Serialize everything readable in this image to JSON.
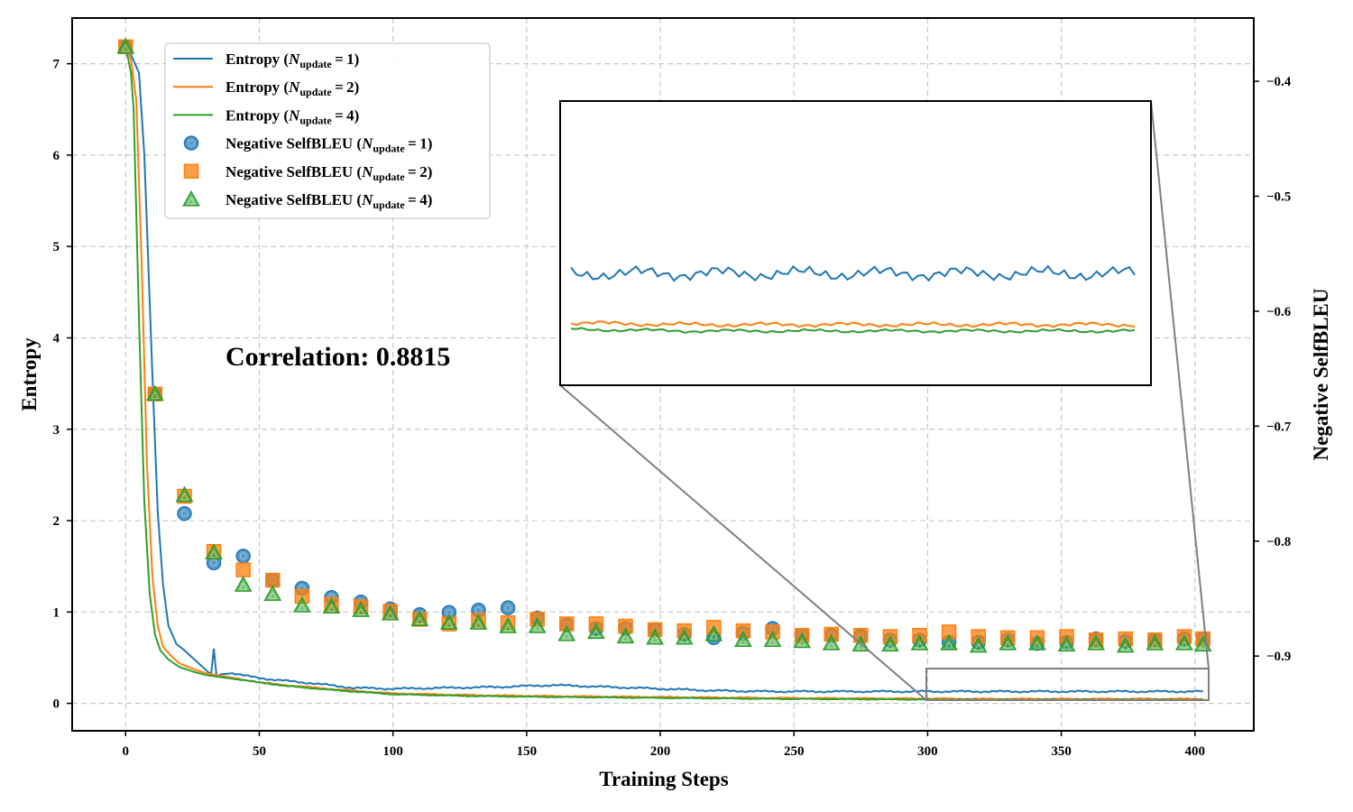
{
  "chart_data": {
    "type": "line",
    "xlabel": "Training Steps",
    "ylabel_left": "Entropy",
    "ylabel_right": "Negative SelfBLEU",
    "xlim": [
      -20,
      422
    ],
    "ylim_left": [
      -0.3,
      7.5
    ],
    "ylim_right": [
      -0.965,
      -0.345
    ],
    "x_ticks": [
      0,
      50,
      100,
      150,
      200,
      250,
      300,
      350,
      400
    ],
    "y_ticks_left": [
      0,
      1,
      2,
      3,
      4,
      5,
      6,
      7
    ],
    "y_ticks_right": [
      -0.4,
      -0.5,
      -0.6,
      -0.7,
      -0.8,
      -0.9
    ],
    "y_tick_labels_right": [
      "−0.4",
      "−0.5",
      "−0.6",
      "−0.7",
      "−0.8",
      "−0.9"
    ],
    "grid": true,
    "legend_position": "top-left",
    "annotation": "Correlation: 0.8815",
    "colors": {
      "n1": "#1f77b4",
      "n2": "#ff7f0e",
      "n4": "#2ca02c",
      "zoom": "#808080"
    },
    "entropy_series": [
      {
        "key": "n1",
        "legend_prefix": "Entropy (",
        "legend_suffix": ")",
        "points": [
          [
            0,
            7.15
          ],
          [
            2,
            7.1
          ],
          [
            5,
            6.9
          ],
          [
            7,
            6.0
          ],
          [
            10,
            3.6
          ],
          [
            12,
            2.1
          ],
          [
            14,
            1.3
          ],
          [
            16,
            0.85
          ],
          [
            19,
            0.65
          ],
          [
            22,
            0.58
          ],
          [
            25,
            0.5
          ],
          [
            28,
            0.42
          ],
          [
            31,
            0.34
          ],
          [
            32,
            0.32
          ],
          [
            33,
            0.6
          ],
          [
            34,
            0.3
          ],
          [
            36,
            0.32
          ],
          [
            40,
            0.33
          ],
          [
            45,
            0.3
          ],
          [
            55,
            0.26
          ],
          [
            70,
            0.22
          ],
          [
            85,
            0.17
          ],
          [
            100,
            0.16
          ],
          [
            120,
            0.17
          ],
          [
            140,
            0.18
          ],
          [
            160,
            0.2
          ],
          [
            180,
            0.18
          ],
          [
            200,
            0.16
          ],
          [
            220,
            0.14
          ],
          [
            240,
            0.13
          ],
          [
            260,
            0.13
          ],
          [
            280,
            0.13
          ],
          [
            300,
            0.13
          ],
          [
            320,
            0.13
          ],
          [
            340,
            0.13
          ],
          [
            360,
            0.13
          ],
          [
            380,
            0.13
          ],
          [
            400,
            0.13
          ]
        ]
      },
      {
        "key": "n2",
        "legend_prefix": "Entropy (",
        "legend_suffix": ")",
        "points": [
          [
            0,
            7.15
          ],
          [
            2,
            7.05
          ],
          [
            4,
            6.6
          ],
          [
            6,
            4.8
          ],
          [
            8,
            2.6
          ],
          [
            10,
            1.4
          ],
          [
            12,
            0.85
          ],
          [
            14,
            0.62
          ],
          [
            17,
            0.52
          ],
          [
            20,
            0.44
          ],
          [
            25,
            0.38
          ],
          [
            30,
            0.33
          ],
          [
            40,
            0.28
          ],
          [
            50,
            0.23
          ],
          [
            60,
            0.2
          ],
          [
            80,
            0.15
          ],
          [
            100,
            0.11
          ],
          [
            130,
            0.09
          ],
          [
            160,
            0.08
          ],
          [
            200,
            0.07
          ],
          [
            240,
            0.06
          ],
          [
            280,
            0.055
          ],
          [
            320,
            0.05
          ],
          [
            360,
            0.05
          ],
          [
            400,
            0.05
          ]
        ]
      },
      {
        "key": "n4",
        "legend_prefix": "Entropy (",
        "legend_suffix": ")",
        "points": [
          [
            0,
            7.15
          ],
          [
            1,
            7.05
          ],
          [
            2,
            6.9
          ],
          [
            3,
            6.5
          ],
          [
            5,
            4.2
          ],
          [
            7,
            2.2
          ],
          [
            9,
            1.2
          ],
          [
            11,
            0.75
          ],
          [
            13,
            0.58
          ],
          [
            16,
            0.48
          ],
          [
            20,
            0.4
          ],
          [
            25,
            0.35
          ],
          [
            30,
            0.31
          ],
          [
            40,
            0.27
          ],
          [
            50,
            0.23
          ],
          [
            60,
            0.19
          ],
          [
            80,
            0.14
          ],
          [
            100,
            0.1
          ],
          [
            130,
            0.08
          ],
          [
            160,
            0.07
          ],
          [
            200,
            0.06
          ],
          [
            240,
            0.05
          ],
          [
            280,
            0.045
          ],
          [
            320,
            0.04
          ],
          [
            360,
            0.04
          ],
          [
            400,
            0.04
          ]
        ]
      }
    ],
    "selfbleu_series": [
      {
        "key": "n1",
        "marker": "circle",
        "legend_prefix": "Negative SelfBLEU (",
        "legend_suffix": ")",
        "points": [
          [
            0,
            -0.37
          ],
          [
            11,
            -0.672
          ],
          [
            22,
            -0.776
          ],
          [
            33,
            -0.819
          ],
          [
            44,
            -0.813
          ],
          [
            55,
            -0.834
          ],
          [
            66,
            -0.841
          ],
          [
            77,
            -0.849
          ],
          [
            88,
            -0.853
          ],
          [
            99,
            -0.859
          ],
          [
            110,
            -0.864
          ],
          [
            121,
            -0.862
          ],
          [
            132,
            -0.86
          ],
          [
            143,
            -0.858
          ],
          [
            154,
            -0.867
          ],
          [
            165,
            -0.873
          ],
          [
            176,
            -0.876
          ],
          [
            187,
            -0.876
          ],
          [
            198,
            -0.877
          ],
          [
            209,
            -0.881
          ],
          [
            220,
            -0.884
          ],
          [
            231,
            -0.88
          ],
          [
            242,
            -0.876
          ],
          [
            253,
            -0.882
          ],
          [
            264,
            -0.882
          ],
          [
            275,
            -0.883
          ],
          [
            286,
            -0.886
          ],
          [
            297,
            -0.886
          ],
          [
            308,
            -0.888
          ],
          [
            319,
            -0.888
          ],
          [
            330,
            -0.886
          ],
          [
            341,
            -0.889
          ],
          [
            352,
            -0.888
          ],
          [
            363,
            -0.885
          ],
          [
            374,
            -0.887
          ],
          [
            385,
            -0.886
          ],
          [
            396,
            -0.885
          ],
          [
            403,
            -0.885
          ]
        ]
      },
      {
        "key": "n2",
        "marker": "square",
        "legend_prefix": "Negative SelfBLEU (",
        "legend_suffix": ")",
        "points": [
          [
            0,
            -0.37
          ],
          [
            11,
            -0.672
          ],
          [
            22,
            -0.761
          ],
          [
            33,
            -0.809
          ],
          [
            44,
            -0.825
          ],
          [
            55,
            -0.834
          ],
          [
            66,
            -0.848
          ],
          [
            77,
            -0.855
          ],
          [
            88,
            -0.857
          ],
          [
            99,
            -0.861
          ],
          [
            110,
            -0.868
          ],
          [
            121,
            -0.872
          ],
          [
            132,
            -0.869
          ],
          [
            143,
            -0.871
          ],
          [
            154,
            -0.868
          ],
          [
            165,
            -0.872
          ],
          [
            176,
            -0.872
          ],
          [
            187,
            -0.874
          ],
          [
            198,
            -0.877
          ],
          [
            209,
            -0.878
          ],
          [
            220,
            -0.875
          ],
          [
            231,
            -0.878
          ],
          [
            242,
            -0.879
          ],
          [
            253,
            -0.882
          ],
          [
            264,
            -0.881
          ],
          [
            275,
            -0.882
          ],
          [
            286,
            -0.883
          ],
          [
            297,
            -0.882
          ],
          [
            308,
            -0.879
          ],
          [
            319,
            -0.883
          ],
          [
            330,
            -0.884
          ],
          [
            341,
            -0.884
          ],
          [
            352,
            -0.883
          ],
          [
            363,
            -0.886
          ],
          [
            374,
            -0.885
          ],
          [
            385,
            -0.886
          ],
          [
            396,
            -0.883
          ],
          [
            403,
            -0.885
          ]
        ]
      },
      {
        "key": "n4",
        "marker": "triangle",
        "legend_prefix": "Negative SelfBLEU (",
        "legend_suffix": ")",
        "points": [
          [
            0,
            -0.37
          ],
          [
            11,
            -0.672
          ],
          [
            22,
            -0.76
          ],
          [
            33,
            -0.81
          ],
          [
            44,
            -0.838
          ],
          [
            55,
            -0.846
          ],
          [
            66,
            -0.856
          ],
          [
            77,
            -0.857
          ],
          [
            88,
            -0.86
          ],
          [
            99,
            -0.863
          ],
          [
            110,
            -0.868
          ],
          [
            121,
            -0.871
          ],
          [
            132,
            -0.871
          ],
          [
            143,
            -0.874
          ],
          [
            154,
            -0.874
          ],
          [
            165,
            -0.881
          ],
          [
            176,
            -0.879
          ],
          [
            187,
            -0.883
          ],
          [
            198,
            -0.884
          ],
          [
            209,
            -0.884
          ],
          [
            220,
            -0.881
          ],
          [
            231,
            -0.886
          ],
          [
            242,
            -0.886
          ],
          [
            253,
            -0.887
          ],
          [
            264,
            -0.889
          ],
          [
            275,
            -0.89
          ],
          [
            286,
            -0.89
          ],
          [
            297,
            -0.889
          ],
          [
            308,
            -0.889
          ],
          [
            319,
            -0.891
          ],
          [
            330,
            -0.889
          ],
          [
            341,
            -0.889
          ],
          [
            352,
            -0.89
          ],
          [
            363,
            -0.889
          ],
          [
            374,
            -0.891
          ],
          [
            385,
            -0.889
          ],
          [
            396,
            -0.889
          ],
          [
            403,
            -0.89
          ]
        ]
      }
    ],
    "inset": {
      "x_range": [
        297,
        406
      ],
      "y_range": [
        -0.045,
        0.4
      ]
    }
  }
}
